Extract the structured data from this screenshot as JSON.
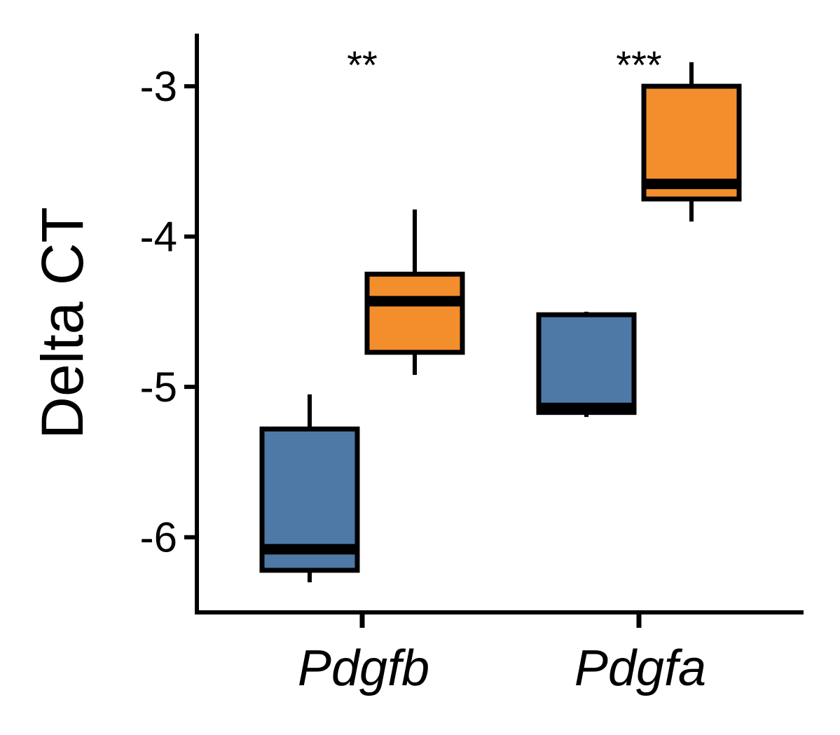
{
  "chart_data": {
    "type": "box",
    "ylabel": "Delta CT",
    "xlabel": "",
    "ylim": [
      -6.5,
      -2.65
    ],
    "yticks": [
      -6,
      -5,
      -4,
      -3
    ],
    "ytick_labels": [
      "-6",
      "-5",
      "-4",
      "-3"
    ],
    "categories": [
      "Pdgfb",
      "Pdgfa"
    ],
    "series": [
      {
        "color": "#4e79a7",
        "boxes": [
          {
            "category": "Pdgfb",
            "whisker_low": -6.3,
            "q1": -6.22,
            "median": -6.08,
            "q3": -5.28,
            "whisker_high": -5.05
          },
          {
            "category": "Pdgfa",
            "whisker_low": -5.2,
            "q1": -5.17,
            "median": -5.14,
            "q3": -4.52,
            "whisker_high": -4.5
          }
        ]
      },
      {
        "color": "#f28e2b",
        "boxes": [
          {
            "category": "Pdgfb",
            "whisker_low": -4.92,
            "q1": -4.77,
            "median": -4.43,
            "q3": -4.25,
            "whisker_high": -3.82
          },
          {
            "category": "Pdgfa",
            "whisker_low": -3.9,
            "q1": -3.75,
            "median": -3.65,
            "q3": -3.0,
            "whisker_high": -2.84
          }
        ]
      }
    ],
    "annotations": [
      {
        "category": "Pdgfb",
        "text": "**"
      },
      {
        "category": "Pdgfa",
        "text": "***"
      }
    ],
    "grid": false,
    "legend": "none"
  }
}
